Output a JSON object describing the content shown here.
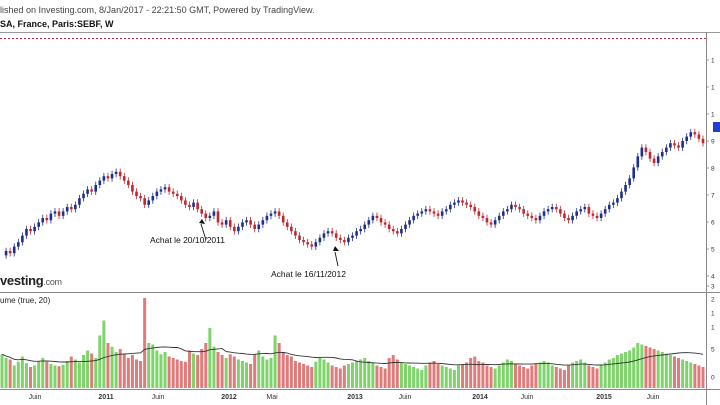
{
  "header": {
    "published": "lished on Investing.com, 8/Jan/2017 - 22:21:50 GMT, Powered by TradingView.",
    "symbol": "SA, France, Paris:SEBF, W"
  },
  "logo": {
    "text": "vesting",
    "domain": ".com"
  },
  "volume_indicator": {
    "label": "ume (true, 20)"
  },
  "colors": {
    "up": "#1c2f8c",
    "down": "#c0272d",
    "vol_up": "#7ed36b",
    "vol_down": "#e07b7b",
    "ma": "#333333",
    "dashed": "#c0272d",
    "price_tag": "#1c3fd6"
  },
  "chart_data": {
    "type": "candlestick",
    "interval": "W",
    "x_tick_labels": [
      "Juin",
      "2011",
      "Juin",
      "2012",
      "Mai",
      "2013",
      "Juin",
      "2014",
      "Juin",
      "2015",
      "Juin"
    ],
    "price_axis_labels": [
      "1",
      "1",
      "1",
      "9",
      "8",
      "7",
      "6",
      "5",
      "4",
      "3"
    ],
    "volume_axis_labels": [
      "2",
      "1",
      "1",
      "5",
      "0"
    ],
    "price_series": [
      43,
      45,
      44,
      47,
      49,
      52,
      55,
      54,
      56,
      58,
      60,
      59,
      62,
      63,
      61,
      63,
      65,
      64,
      66,
      69,
      71,
      73,
      72,
      75,
      77,
      79,
      78,
      80,
      81,
      79,
      77,
      75,
      72,
      70,
      69,
      66,
      68,
      70,
      72,
      73,
      74,
      72,
      71,
      70,
      68,
      66,
      65,
      67,
      64,
      62,
      60,
      61,
      63,
      58,
      57,
      59,
      56,
      54,
      56,
      58,
      59,
      57,
      55,
      57,
      59,
      61,
      62,
      63,
      61,
      58,
      56,
      54,
      52,
      50,
      49,
      48,
      47,
      49,
      51,
      53,
      54,
      53,
      51,
      50,
      49,
      51,
      52,
      54,
      55,
      57,
      59,
      61,
      60,
      58,
      57,
      55,
      54,
      53,
      55,
      57,
      59,
      61,
      62,
      63,
      64,
      63,
      62,
      61,
      63,
      64,
      66,
      67,
      68,
      67,
      66,
      65,
      63,
      61,
      60,
      58,
      57,
      59,
      61,
      63,
      64,
      66,
      65,
      64,
      62,
      61,
      60,
      59,
      61,
      63,
      64,
      65,
      64,
      62,
      60,
      59,
      61,
      63,
      64,
      65,
      62,
      61,
      60,
      62,
      64,
      66,
      67,
      69,
      72,
      75,
      78,
      83,
      88,
      92,
      90,
      87,
      85,
      88,
      90,
      92,
      94,
      93,
      92,
      95,
      97,
      99,
      98,
      96,
      94
    ],
    "volume_series": [
      45,
      40,
      38,
      30,
      35,
      42,
      33,
      28,
      30,
      36,
      40,
      35,
      32,
      30,
      29,
      31,
      36,
      42,
      38,
      34,
      44,
      50,
      46,
      40,
      70,
      90,
      60,
      55,
      48,
      52,
      45,
      40,
      44,
      38,
      36,
      120,
      60,
      58,
      50,
      45,
      48,
      42,
      40,
      38,
      36,
      35,
      50,
      46,
      44,
      52,
      60,
      80,
      55,
      48,
      44,
      40,
      45,
      42,
      38,
      36,
      34,
      32,
      45,
      50,
      42,
      38,
      40,
      70,
      60,
      48,
      44,
      42,
      36,
      34,
      32,
      30,
      28,
      35,
      40,
      38,
      34,
      30,
      28,
      26,
      30,
      32,
      34,
      36,
      38,
      40,
      36,
      34,
      30,
      28,
      26,
      40,
      44,
      38,
      34,
      32,
      30,
      28,
      26,
      24,
      30,
      34,
      36,
      32,
      30,
      28,
      26,
      24,
      30,
      32,
      34,
      40,
      42,
      36,
      34,
      30,
      28,
      26,
      30,
      34,
      38,
      36,
      32,
      30,
      28,
      26,
      30,
      32,
      34,
      36,
      34,
      30,
      28,
      26,
      24,
      30,
      34,
      36,
      38,
      34,
      30,
      28,
      26,
      30,
      34,
      38,
      40,
      44,
      46,
      48,
      50,
      54,
      60,
      58,
      56,
      54,
      52,
      50,
      48,
      46,
      44,
      42,
      40,
      38,
      36,
      34,
      32,
      30,
      28
    ],
    "annotations": [
      {
        "text": "Achat le 20/10/2011"
      },
      {
        "text": "Achat le 16/11/2012"
      }
    ]
  }
}
